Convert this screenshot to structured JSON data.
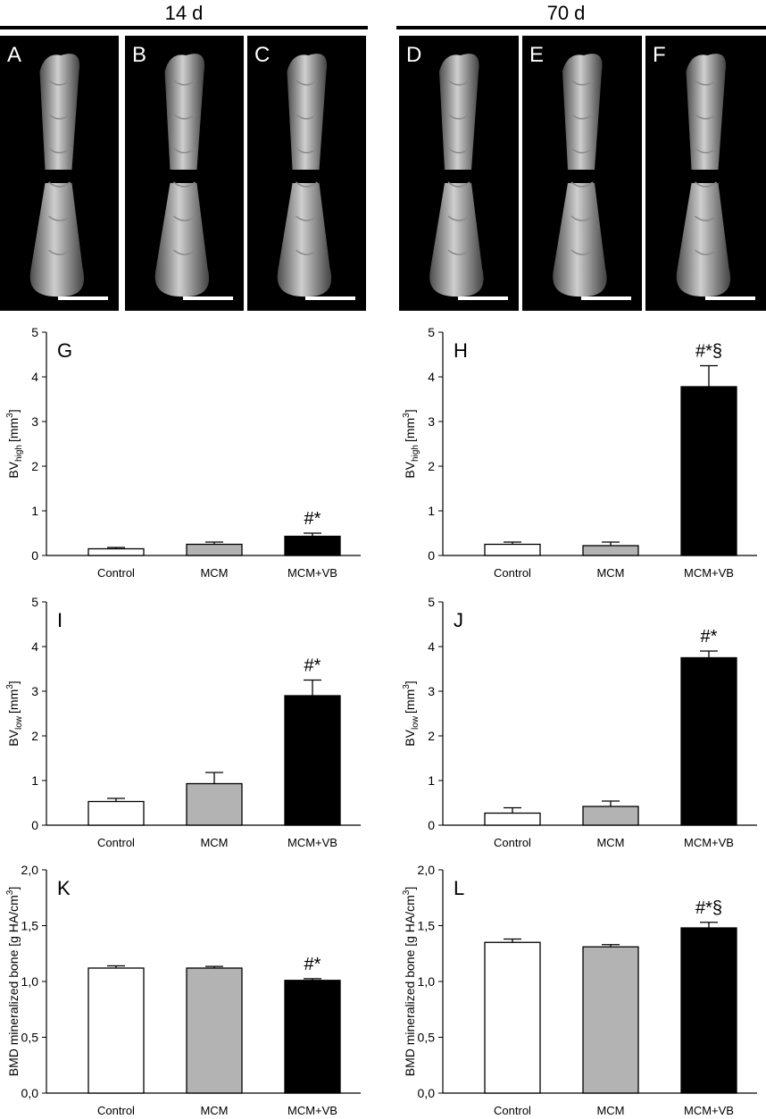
{
  "headings": {
    "left": "14 d",
    "right": "70 d"
  },
  "image_panels": [
    {
      "label": "A"
    },
    {
      "label": "B"
    },
    {
      "label": "C"
    },
    {
      "label": "D"
    },
    {
      "label": "E"
    },
    {
      "label": "F"
    }
  ],
  "chart_data": [
    {
      "type": "bar",
      "panel_label": "G",
      "categories": [
        "Control",
        "MCM",
        "MCM+VB"
      ],
      "values": [
        0.15,
        0.25,
        0.43
      ],
      "errors": [
        0.03,
        0.05,
        0.07
      ],
      "bar_colors": [
        "#ffffff",
        "#b3b3b3",
        "#000000"
      ],
      "annotations": [
        "",
        "",
        "#*"
      ],
      "ylabel": "BV",
      "ylabel_sub": "high",
      "ylabel_unit": "[mm",
      "ylabel_sup": "3",
      "ylabel_close": "]",
      "ylim": [
        0,
        5
      ],
      "yticks": [
        "0",
        "1",
        "2",
        "3",
        "4",
        "5"
      ]
    },
    {
      "type": "bar",
      "panel_label": "H",
      "categories": [
        "Control",
        "MCM",
        "MCM+VB"
      ],
      "values": [
        0.25,
        0.22,
        3.78
      ],
      "errors": [
        0.05,
        0.08,
        0.47
      ],
      "bar_colors": [
        "#ffffff",
        "#b3b3b3",
        "#000000"
      ],
      "annotations": [
        "",
        "",
        "#*§"
      ],
      "ylabel": "BV",
      "ylabel_sub": "high",
      "ylabel_unit": "[mm",
      "ylabel_sup": "3",
      "ylabel_close": "]",
      "ylim": [
        0,
        5
      ],
      "yticks": [
        "0",
        "1",
        "2",
        "3",
        "4",
        "5"
      ]
    },
    {
      "type": "bar",
      "panel_label": "I",
      "categories": [
        "Control",
        "MCM",
        "MCM+VB"
      ],
      "values": [
        0.53,
        0.93,
        2.9
      ],
      "errors": [
        0.07,
        0.25,
        0.35
      ],
      "bar_colors": [
        "#ffffff",
        "#b3b3b3",
        "#000000"
      ],
      "annotations": [
        "",
        "",
        "#*"
      ],
      "ylabel": "BV",
      "ylabel_sub": "low",
      "ylabel_unit": "[mm",
      "ylabel_sup": "3",
      "ylabel_close": "]",
      "ylim": [
        0,
        5
      ],
      "yticks": [
        "0",
        "1",
        "2",
        "3",
        "4",
        "5"
      ]
    },
    {
      "type": "bar",
      "panel_label": "J",
      "categories": [
        "Control",
        "MCM",
        "MCM+VB"
      ],
      "values": [
        0.27,
        0.42,
        3.75
      ],
      "errors": [
        0.12,
        0.12,
        0.15
      ],
      "bar_colors": [
        "#ffffff",
        "#b3b3b3",
        "#000000"
      ],
      "annotations": [
        "",
        "",
        "#*"
      ],
      "ylabel": "BV",
      "ylabel_sub": "low",
      "ylabel_unit": "[mm",
      "ylabel_sup": "3",
      "ylabel_close": "]",
      "ylim": [
        0,
        5
      ],
      "yticks": [
        "0",
        "1",
        "2",
        "3",
        "4",
        "5"
      ]
    },
    {
      "type": "bar",
      "panel_label": "K",
      "categories": [
        "Control",
        "MCM",
        "MCM+VB"
      ],
      "values": [
        1.12,
        1.12,
        1.01
      ],
      "errors": [
        0.02,
        0.015,
        0.015
      ],
      "bar_colors": [
        "#ffffff",
        "#b3b3b3",
        "#000000"
      ],
      "annotations": [
        "",
        "",
        "#*"
      ],
      "ylabel": "BMD mineralized bone [g HA/cm",
      "ylabel_sub": "",
      "ylabel_unit": "",
      "ylabel_sup": "3",
      "ylabel_close": "]",
      "ylim": [
        0,
        2
      ],
      "yticks": [
        "0,0",
        "0,5",
        "1,0",
        "1,5",
        "2,0"
      ]
    },
    {
      "type": "bar",
      "panel_label": "L",
      "categories": [
        "Control",
        "MCM",
        "MCM+VB"
      ],
      "values": [
        1.35,
        1.31,
        1.48
      ],
      "errors": [
        0.03,
        0.02,
        0.05
      ],
      "bar_colors": [
        "#ffffff",
        "#b3b3b3",
        "#000000"
      ],
      "annotations": [
        "",
        "",
        "#*§"
      ],
      "ylabel": "BMD mineralized bone [g HA/cm",
      "ylabel_sub": "",
      "ylabel_unit": "",
      "ylabel_sup": "3",
      "ylabel_close": "]",
      "ylim": [
        0,
        2
      ],
      "yticks": [
        "0,0",
        "0,5",
        "1,0",
        "1,5",
        "2,0"
      ]
    }
  ]
}
